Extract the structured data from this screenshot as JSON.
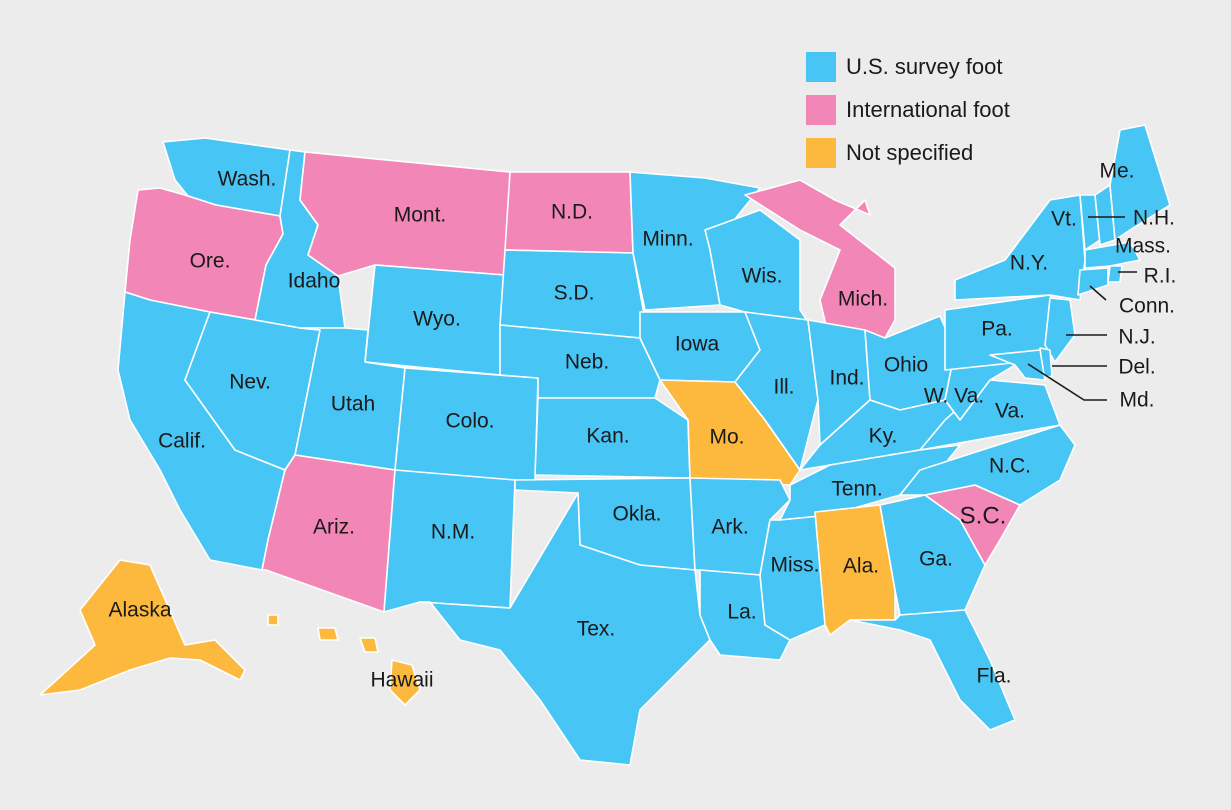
{
  "colors": {
    "us_survey_foot": "#47c5f4",
    "international_foot": "#f287b7",
    "not_specified": "#fdb93e",
    "background": "#ececec"
  },
  "legend": [
    {
      "key": "us_survey_foot",
      "label": "U.S. survey foot"
    },
    {
      "key": "international_foot",
      "label": "International foot"
    },
    {
      "key": "not_specified",
      "label": "Not specified"
    }
  ],
  "states": {
    "wash": {
      "label": "Wash.",
      "category": "us_survey_foot"
    },
    "ore": {
      "label": "Ore.",
      "category": "international_foot"
    },
    "calif": {
      "label": "Calif.",
      "category": "us_survey_foot"
    },
    "idaho": {
      "label": "Idaho",
      "category": "us_survey_foot"
    },
    "nev": {
      "label": "Nev.",
      "category": "us_survey_foot"
    },
    "mont": {
      "label": "Mont.",
      "category": "international_foot"
    },
    "wyo": {
      "label": "Wyo.",
      "category": "us_survey_foot"
    },
    "utah": {
      "label": "Utah",
      "category": "us_survey_foot"
    },
    "ariz": {
      "label": "Ariz.",
      "category": "international_foot"
    },
    "colo": {
      "label": "Colo.",
      "category": "us_survey_foot"
    },
    "nm": {
      "label": "N.M.",
      "category": "us_survey_foot"
    },
    "nd": {
      "label": "N.D.",
      "category": "international_foot"
    },
    "sd": {
      "label": "S.D.",
      "category": "us_survey_foot"
    },
    "neb": {
      "label": "Neb.",
      "category": "us_survey_foot"
    },
    "kan": {
      "label": "Kan.",
      "category": "us_survey_foot"
    },
    "okla": {
      "label": "Okla.",
      "category": "us_survey_foot"
    },
    "tex": {
      "label": "Tex.",
      "category": "us_survey_foot"
    },
    "minn": {
      "label": "Minn.",
      "category": "us_survey_foot"
    },
    "iowa": {
      "label": "Iowa",
      "category": "us_survey_foot"
    },
    "mo": {
      "label": "Mo.",
      "category": "not_specified"
    },
    "ark": {
      "label": "Ark.",
      "category": "us_survey_foot"
    },
    "la": {
      "label": "La.",
      "category": "us_survey_foot"
    },
    "wis": {
      "label": "Wis.",
      "category": "us_survey_foot"
    },
    "ill": {
      "label": "Ill.",
      "category": "us_survey_foot"
    },
    "mich": {
      "label": "Mich.",
      "category": "international_foot"
    },
    "ind": {
      "label": "Ind.",
      "category": "us_survey_foot"
    },
    "ohio": {
      "label": "Ohio",
      "category": "us_survey_foot"
    },
    "ky": {
      "label": "Ky.",
      "category": "us_survey_foot"
    },
    "tenn": {
      "label": "Tenn.",
      "category": "us_survey_foot"
    },
    "miss": {
      "label": "Miss.",
      "category": "us_survey_foot"
    },
    "ala": {
      "label": "Ala.",
      "category": "not_specified"
    },
    "ga": {
      "label": "Ga.",
      "category": "us_survey_foot"
    },
    "fla": {
      "label": "Fla.",
      "category": "us_survey_foot"
    },
    "sc": {
      "label": "S.C.",
      "category": "international_foot"
    },
    "nc": {
      "label": "N.C.",
      "category": "us_survey_foot"
    },
    "va": {
      "label": "Va.",
      "category": "us_survey_foot"
    },
    "wva": {
      "label": "W. Va.",
      "category": "us_survey_foot"
    },
    "pa": {
      "label": "Pa.",
      "category": "us_survey_foot"
    },
    "ny": {
      "label": "N.Y.",
      "category": "us_survey_foot"
    },
    "vt": {
      "label": "Vt.",
      "category": "us_survey_foot"
    },
    "nh": {
      "label": "N.H.",
      "category": "us_survey_foot"
    },
    "me": {
      "label": "Me.",
      "category": "us_survey_foot"
    },
    "mass": {
      "label": "Mass.",
      "category": "us_survey_foot"
    },
    "ri": {
      "label": "R.I.",
      "category": "us_survey_foot"
    },
    "conn": {
      "label": "Conn.",
      "category": "us_survey_foot"
    },
    "nj": {
      "label": "N.J.",
      "category": "us_survey_foot"
    },
    "del": {
      "label": "Del.",
      "category": "us_survey_foot"
    },
    "md": {
      "label": "Md.",
      "category": "us_survey_foot"
    },
    "alaska": {
      "label": "Alaska",
      "category": "not_specified"
    },
    "hawaii": {
      "label": "Hawaii",
      "category": "not_specified"
    }
  }
}
